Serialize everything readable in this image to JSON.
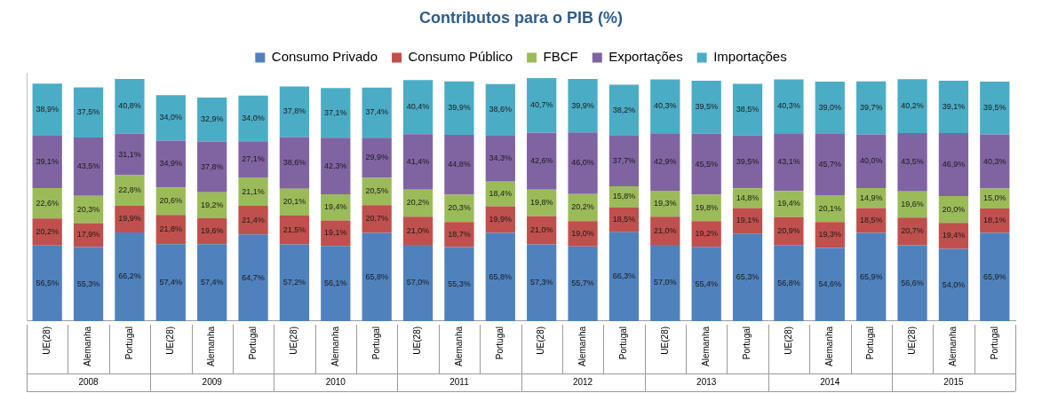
{
  "chart_data": {
    "type": "bar",
    "title": "Contributos para o PIB (%)",
    "categories": [
      "UE(28)",
      "Alemanha",
      "Portugal",
      "UE(28)",
      "Alemanha",
      "Portugal",
      "UE(28)",
      "Alemanha",
      "Portugal",
      "UE(28)",
      "Alemanha",
      "Portugal",
      "UE(28)",
      "Alemanha",
      "Portugal",
      "UE(28)",
      "Alemanha",
      "Portugal",
      "UE(28)",
      "Alemanha",
      "Portugal",
      "UE(28)",
      "Alemanha",
      "Portugal"
    ],
    "groups": [
      "2008",
      "2009",
      "2010",
      "2011",
      "2012",
      "2013",
      "2014",
      "2015"
    ],
    "series": [
      {
        "name": "Consumo Privado",
        "color": "#4F81BD",
        "values": [
          56.5,
          55.3,
          66.2,
          57.4,
          57.4,
          64.7,
          57.2,
          56.1,
          65.8,
          57.0,
          55.3,
          65.8,
          57.3,
          55.7,
          66.3,
          57.0,
          55.4,
          65.3,
          56.8,
          54.6,
          65.9,
          56.6,
          54.0,
          65.9
        ],
        "value_labels": [
          "56,5%",
          "55,3%",
          "66,2%",
          "57,4%",
          "57,4%",
          "64,7%",
          "57,2%",
          "56,1%",
          "65,8%",
          "57,0%",
          "55,3%",
          "65,8%",
          "57,3%",
          "55,7%",
          "66,3%",
          "57,0%",
          "55,4%",
          "65,3%",
          "56,8%",
          "54,6%",
          "65,9%",
          "56,6%",
          "54,0%",
          "65,9%"
        ]
      },
      {
        "name": "Consumo Público",
        "color": "#C0504D",
        "values": [
          20.2,
          17.9,
          19.9,
          21.8,
          19.6,
          21.4,
          21.5,
          19.1,
          20.7,
          21.0,
          18.7,
          19.9,
          21.0,
          19.0,
          18.5,
          21.0,
          19.2,
          19.1,
          20.9,
          19.3,
          18.5,
          20.7,
          19.4,
          18.1
        ],
        "value_labels": [
          "20,2%",
          "17,9%",
          "19,9%",
          "21,8%",
          "19,6%",
          "21,4%",
          "21,5%",
          "19,1%",
          "20,7%",
          "21,0%",
          "18,7%",
          "19,9%",
          "21,0%",
          "19,0%",
          "18,5%",
          "21,0%",
          "19,2%",
          "19,1%",
          "20,9%",
          "19,3%",
          "18,5%",
          "20,7%",
          "19,4%",
          "18,1%"
        ]
      },
      {
        "name": "FBCF",
        "color": "#9BBB59",
        "values": [
          22.6,
          20.3,
          22.8,
          20.6,
          19.2,
          21.1,
          20.1,
          19.4,
          20.5,
          20.2,
          20.3,
          18.4,
          19.8,
          20.2,
          15.8,
          19.3,
          19.8,
          14.8,
          19.4,
          20.1,
          14.9,
          19.6,
          20.0,
          15.0
        ],
        "value_labels": [
          "22,6%",
          "20,3%",
          "22,8%",
          "20,6%",
          "19,2%",
          "21,1%",
          "20,1%",
          "19,4%",
          "20,5%",
          "20,2%",
          "20,3%",
          "18,4%",
          "19,8%",
          "20,2%",
          "15,8%",
          "19,3%",
          "19,8%",
          "14,8%",
          "19,4%",
          "20,1%",
          "14,9%",
          "19,6%",
          "20,0%",
          "15,0%"
        ]
      },
      {
        "name": "Exportações",
        "color": "#8064A2",
        "values": [
          39.1,
          43.5,
          31.1,
          34.9,
          37.8,
          27.1,
          38.6,
          42.3,
          29.9,
          41.4,
          44.8,
          34.3,
          42.6,
          46.0,
          37.7,
          42.9,
          45.5,
          39.5,
          43.1,
          45.7,
          40.0,
          43.5,
          46.9,
          40.3
        ],
        "value_labels": [
          "39,1%",
          "43,5%",
          "31,1%",
          "34,9%",
          "37,8%",
          "27,1%",
          "38,6%",
          "42,3%",
          "29,9%",
          "41,4%",
          "44,8%",
          "34,3%",
          "42,6%",
          "46,0%",
          "37,7%",
          "42,9%",
          "45,5%",
          "39,5%",
          "43,1%",
          "45,7%",
          "40,0%",
          "43,5%",
          "46,9%",
          "40,3%"
        ]
      },
      {
        "name": "Importações",
        "color": "#4BACC6",
        "values": [
          38.9,
          37.5,
          40.8,
          34.0,
          32.9,
          34.0,
          37.8,
          37.1,
          37.4,
          40.4,
          39.9,
          38.6,
          40.7,
          39.9,
          38.2,
          40.3,
          39.5,
          38.5,
          40.3,
          39.0,
          39.7,
          40.2,
          39.1,
          39.5
        ],
        "value_labels": [
          "38,9%",
          "37,5%",
          "40,8%",
          "34,0%",
          "32,9%",
          "34,0%",
          "37,8%",
          "37,1%",
          "37,4%",
          "40,4%",
          "39,9%",
          "38,6%",
          "40,7%",
          "39,9%",
          "38,2%",
          "40,3%",
          "39,5%",
          "38,5%",
          "40,3%",
          "39,0%",
          "39,7%",
          "40,2%",
          "39,1%",
          "39,5%"
        ]
      }
    ],
    "ylim": [
      0,
      185
    ],
    "stacked": true,
    "data_labels": true,
    "legend": "top",
    "grid": false,
    "tick_labels": "x"
  }
}
